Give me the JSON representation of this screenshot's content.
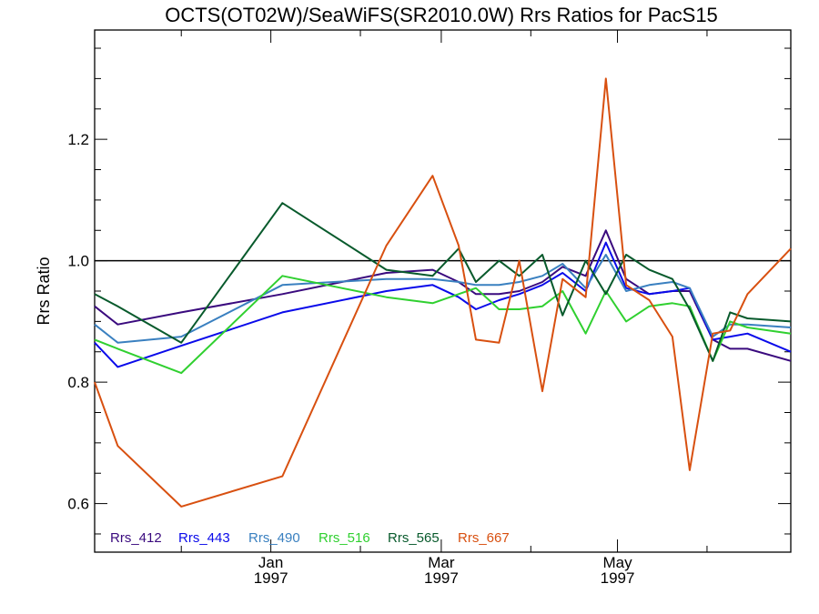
{
  "chart_data": {
    "type": "line",
    "title": "OCTS(OT02W)/SeaWiFS(SR2010.0W)  Rrs Ratios for PacS15",
    "ylabel": "Rrs Ratio",
    "xlabel": "",
    "x_axis": {
      "type": "date",
      "range": [
        "1996-11-01",
        "1997-06-30"
      ],
      "ticks": [
        {
          "date": "1997-01-01",
          "month": "Jan",
          "year": "1997"
        },
        {
          "date": "1997-03-01",
          "month": "Mar",
          "year": "1997"
        },
        {
          "date": "1997-05-01",
          "month": "May",
          "year": "1997"
        }
      ],
      "minor_ticks": [
        "1996-12-01",
        "1997-02-01",
        "1997-04-01",
        "1997-06-01"
      ]
    },
    "ylim": [
      0.52,
      1.38
    ],
    "yticks": [
      0.6,
      0.8,
      1.0,
      1.2
    ],
    "ytick_labels": [
      "0.6",
      "0.8",
      "1.0",
      "1.2"
    ],
    "reference_line": {
      "y": 1.0,
      "color": "#000000"
    },
    "grid": false,
    "legend_position": "bottom-left, inside plot",
    "dates": [
      "1996-11-01",
      "1996-11-09",
      "1996-12-01",
      "1997-01-05",
      "1997-02-10",
      "1997-02-26",
      "1997-03-07",
      "1997-03-13",
      "1997-03-21",
      "1997-03-28",
      "1997-04-05",
      "1997-04-12",
      "1997-04-20",
      "1997-04-27",
      "1997-05-04",
      "1997-05-12",
      "1997-05-20",
      "1997-05-26",
      "1997-06-03",
      "1997-06-09",
      "1997-06-15",
      "1997-06-30"
    ],
    "series": [
      {
        "name": "Rrs_412",
        "color": "#3a0a7e",
        "values": [
          0.925,
          0.895,
          0.915,
          0.945,
          0.98,
          0.985,
          0.965,
          0.945,
          0.945,
          0.95,
          0.965,
          0.99,
          0.975,
          1.05,
          0.97,
          0.945,
          0.95,
          0.95,
          0.87,
          0.855,
          0.855,
          0.835
        ]
      },
      {
        "name": "Rrs_443",
        "color": "#0a0aea",
        "values": [
          0.865,
          0.825,
          0.86,
          0.915,
          0.95,
          0.96,
          0.94,
          0.92,
          0.935,
          0.945,
          0.96,
          0.98,
          0.95,
          1.03,
          0.955,
          0.945,
          0.95,
          0.955,
          0.87,
          0.875,
          0.88,
          0.85
        ]
      },
      {
        "name": "Rrs_490",
        "color": "#3a80c0",
        "values": [
          0.895,
          0.865,
          0.875,
          0.96,
          0.97,
          0.97,
          0.965,
          0.96,
          0.96,
          0.965,
          0.975,
          0.995,
          0.955,
          1.01,
          0.95,
          0.96,
          0.965,
          0.955,
          0.875,
          0.895,
          0.895,
          0.89
        ]
      },
      {
        "name": "Rrs_516",
        "color": "#30d030",
        "values": [
          0.87,
          0.855,
          0.815,
          0.975,
          0.94,
          0.93,
          0.945,
          0.955,
          0.92,
          0.92,
          0.925,
          0.95,
          0.88,
          0.95,
          0.9,
          0.925,
          0.93,
          0.925,
          0.835,
          0.9,
          0.89,
          0.88
        ]
      },
      {
        "name": "Rrs_565",
        "color": "#085a2c",
        "values": [
          0.945,
          0.925,
          0.865,
          1.095,
          0.985,
          0.975,
          1.02,
          0.965,
          1.0,
          0.975,
          1.01,
          0.91,
          1.0,
          0.945,
          1.01,
          0.985,
          0.97,
          0.92,
          0.835,
          0.915,
          0.905,
          0.9
        ]
      },
      {
        "name": "Rrs_667",
        "color": "#d85010",
        "values": [
          0.8,
          0.695,
          0.595,
          0.645,
          1.025,
          1.14,
          1.025,
          0.87,
          0.865,
          1.0,
          0.785,
          0.97,
          0.94,
          1.3,
          0.96,
          0.935,
          0.875,
          0.655,
          0.88,
          0.885,
          0.945,
          1.02
        ]
      }
    ]
  }
}
